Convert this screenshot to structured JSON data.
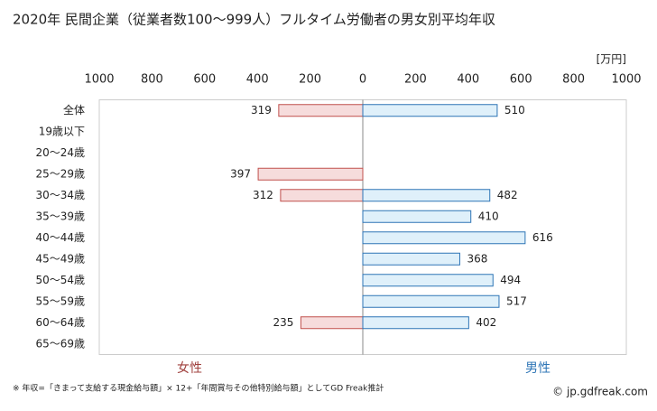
{
  "chart_data": {
    "type": "butterfly",
    "title": "2020年 民間企業（従業者数100～999人）フルタイム労働者の男女別平均年収",
    "unit": "[万円]",
    "categories": [
      "全体",
      "19歳以下",
      "20～24歳",
      "25～29歳",
      "30～34歳",
      "35～39歳",
      "40～44歳",
      "45～49歳",
      "50～54歳",
      "55～59歳",
      "60～64歳",
      "65～69歳"
    ],
    "series": [
      {
        "name": "女性",
        "side": "left",
        "color": "#c0504d",
        "fill": "#f6dcdc",
        "label_color": "#a0413e",
        "values": [
          319,
          null,
          null,
          397,
          312,
          null,
          null,
          null,
          null,
          null,
          235,
          null
        ]
      },
      {
        "name": "男性",
        "side": "right",
        "color": "#2e75b6",
        "fill": "#dff0fa",
        "label_color": "#2e75b6",
        "values": [
          510,
          null,
          null,
          null,
          482,
          410,
          616,
          368,
          494,
          517,
          402,
          null
        ]
      }
    ],
    "xlim": [
      0,
      1000
    ],
    "xticks": [
      0,
      200,
      400,
      600,
      800,
      1000
    ],
    "grid": false,
    "note": "※ 年収=「きまって支給する現金給与額」× 12+「年間賞与その他特別給与額」としてGD Freak推計",
    "credit": "© jp.gdfreak.com"
  }
}
